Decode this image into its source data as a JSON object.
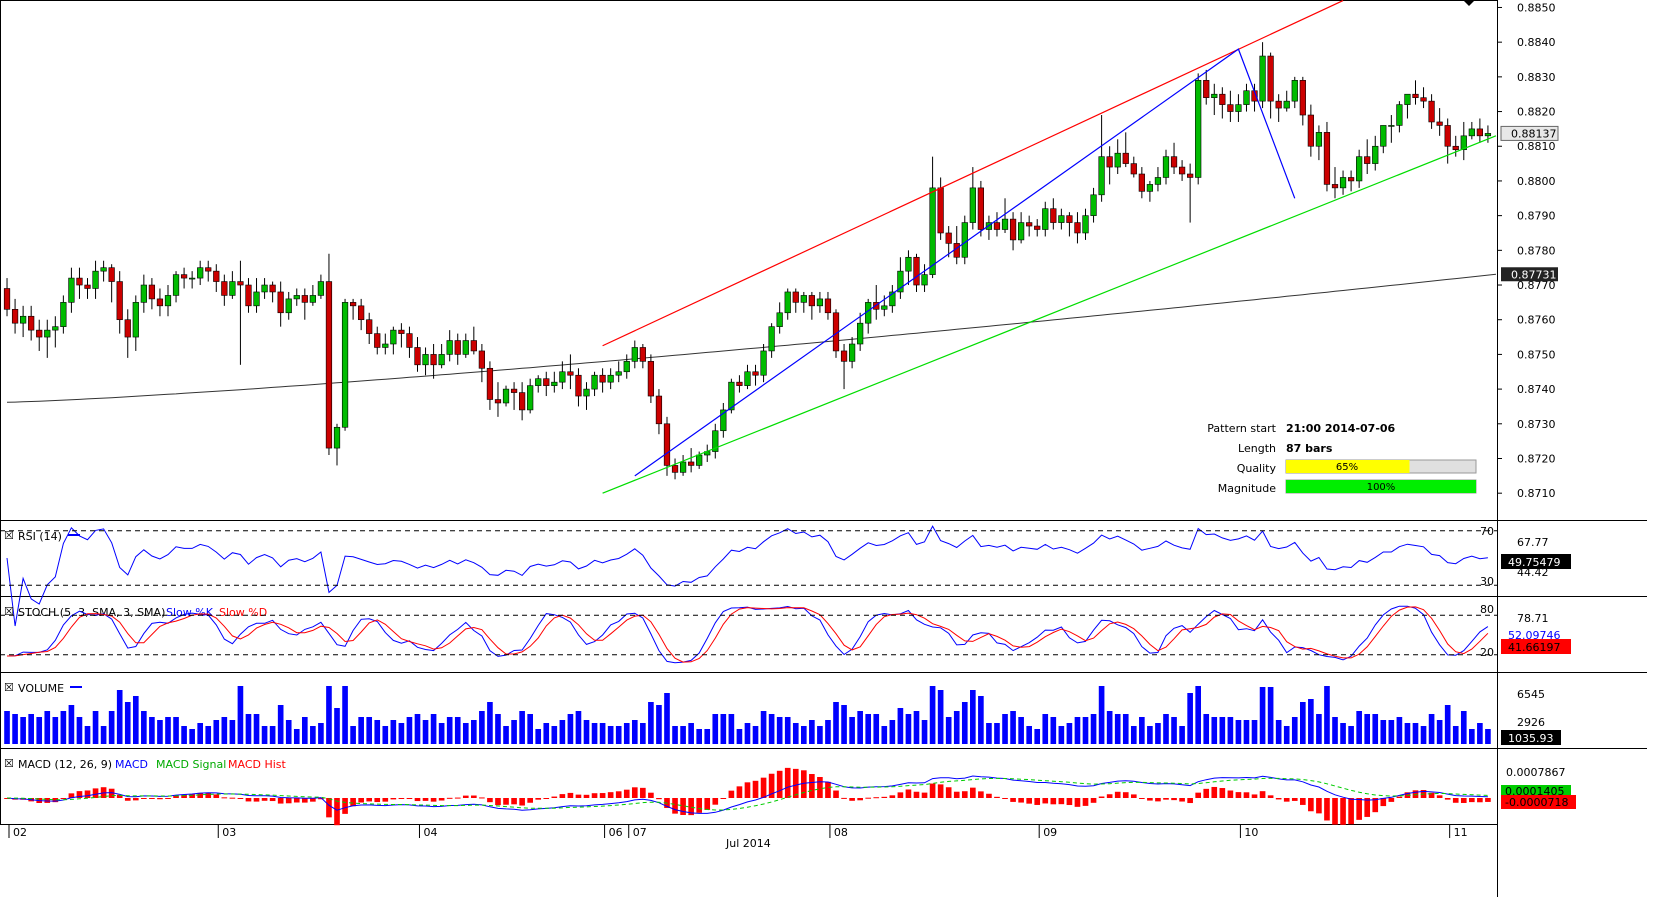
{
  "colors": {
    "bull": "#00bb00",
    "bear": "#cc0000",
    "trendline_upper": "#ff0000",
    "trendline_lower": "#00dd00",
    "zigzag": "#0000ff",
    "ma": "#333333",
    "rsi": "#0000ff",
    "stoch_k": "#0000ff",
    "stoch_d": "#ff0000",
    "volume": "#0000ff",
    "macd": "#0000ff",
    "macd_signal": "#00cc00",
    "macd_hist": "#ff0000",
    "quality_bar": "#ffff00",
    "magnitude_bar": "#00ee00"
  },
  "pattern_info": {
    "start_label": "Pattern start",
    "start_value": "21:00 2014-07-06",
    "length_label": "Length",
    "length_value": "87 bars",
    "quality_label": "Quality",
    "quality_value": "65%",
    "quality_fraction": 0.65,
    "magnitude_label": "Magnitude",
    "magnitude_value": "100%",
    "magnitude_fraction": 1.0
  },
  "panels": {
    "rsi": {
      "label": "RSI (14)",
      "levels": [
        "70",
        "30"
      ],
      "value_a": "67.77",
      "value_b": "49.75479",
      "value_c": "44.42"
    },
    "stoch": {
      "label": "STOCH (5, 3, SMA, 3, SMA)",
      "k_label": "Slow %K",
      "d_label": "Slow %D",
      "levels": [
        "80",
        "20"
      ],
      "value_a": "78.71",
      "value_b": "52.09746",
      "value_c": "41.66197"
    },
    "volume": {
      "label": "VOLUME",
      "ticks": [
        "6545",
        "2926"
      ],
      "last_value": "1035.93"
    },
    "macd": {
      "label": "MACD (12, 26, 9)",
      "macd_name": "MACD",
      "signal_name": "MACD Signal",
      "hist_name": "MACD Hist",
      "tick": "0.0007867",
      "value_a": "0.0001405",
      "value_b": "-0.0000718"
    }
  },
  "chart_data": {
    "type": "candlestick",
    "instrument_note": "",
    "y_ticks": [
      "0.8850",
      "0.8840",
      "0.8830",
      "0.8820",
      "0.8810",
      "0.8800",
      "0.8790",
      "0.8780",
      "0.8770",
      "0.8760",
      "0.8750",
      "0.8740",
      "0.8730",
      "0.8720",
      "0.8710"
    ],
    "ylim": [
      0.8704,
      0.8851
    ],
    "current_price": "0.88137",
    "ma_value": "0.87731",
    "x_ticks": [
      "02",
      "03",
      "04",
      "06",
      "07",
      "08",
      "09",
      "10",
      "11"
    ],
    "x_month_label": "Jul 2014",
    "x_tick_bars": [
      0,
      26,
      51,
      74,
      77,
      102,
      128,
      153,
      179
    ],
    "bars": 186,
    "candles": [
      [
        0.8769,
        0.8763,
        0.8772,
        0.8761
      ],
      [
        0.8763,
        0.8759,
        0.8766,
        0.8756
      ],
      [
        0.8759,
        0.8761,
        0.8764,
        0.8755
      ],
      [
        0.8761,
        0.8757,
        0.8764,
        0.8754
      ],
      [
        0.8757,
        0.8755,
        0.876,
        0.8751
      ],
      [
        0.8755,
        0.8757,
        0.876,
        0.8749
      ],
      [
        0.8757,
        0.8758,
        0.8761,
        0.8752
      ],
      [
        0.8758,
        0.8765,
        0.8767,
        0.8756
      ],
      [
        0.8765,
        0.8772,
        0.8775,
        0.8762
      ],
      [
        0.8772,
        0.877,
        0.8775,
        0.8766
      ],
      [
        0.877,
        0.8769,
        0.8772,
        0.8766
      ],
      [
        0.8769,
        0.8774,
        0.8777,
        0.8766
      ],
      [
        0.8774,
        0.8775,
        0.8777,
        0.8771
      ],
      [
        0.8775,
        0.8771,
        0.8776,
        0.8765
      ],
      [
        0.8771,
        0.876,
        0.8774,
        0.8756
      ],
      [
        0.876,
        0.8755,
        0.8763,
        0.8749
      ],
      [
        0.8755,
        0.8765,
        0.8767,
        0.8751
      ],
      [
        0.8765,
        0.877,
        0.8773,
        0.8762
      ],
      [
        0.877,
        0.8766,
        0.8772,
        0.8763
      ],
      [
        0.8766,
        0.8764,
        0.8769,
        0.8761
      ],
      [
        0.8764,
        0.8767,
        0.877,
        0.8761
      ],
      [
        0.8767,
        0.8773,
        0.8774,
        0.8765
      ],
      [
        0.8773,
        0.8772,
        0.8775,
        0.8769
      ],
      [
        0.8772,
        0.8772,
        0.8774,
        0.8769
      ],
      [
        0.8772,
        0.8775,
        0.8777,
        0.877
      ],
      [
        0.8775,
        0.8774,
        0.8777,
        0.8771
      ],
      [
        0.8774,
        0.8771,
        0.8776,
        0.8768
      ],
      [
        0.8771,
        0.8767,
        0.8773,
        0.8764
      ],
      [
        0.8767,
        0.8771,
        0.8774,
        0.8766
      ],
      [
        0.8771,
        0.877,
        0.8777,
        0.8747
      ],
      [
        0.877,
        0.8764,
        0.8772,
        0.8762
      ],
      [
        0.8764,
        0.8768,
        0.8772,
        0.8762
      ],
      [
        0.8768,
        0.877,
        0.8772,
        0.8766
      ],
      [
        0.877,
        0.8768,
        0.8771,
        0.8765
      ],
      [
        0.8768,
        0.8762,
        0.8771,
        0.8758
      ],
      [
        0.8762,
        0.8766,
        0.8768,
        0.876
      ],
      [
        0.8766,
        0.8767,
        0.8769,
        0.8764
      ],
      [
        0.8767,
        0.8765,
        0.8769,
        0.876
      ],
      [
        0.8765,
        0.8767,
        0.877,
        0.8764
      ],
      [
        0.8767,
        0.8771,
        0.8773,
        0.8766
      ],
      [
        0.8771,
        0.8723,
        0.8779,
        0.8721
      ],
      [
        0.8723,
        0.8729,
        0.873,
        0.8718
      ],
      [
        0.8729,
        0.8765,
        0.8766,
        0.8728
      ],
      [
        0.8765,
        0.8764,
        0.8766,
        0.876
      ],
      [
        0.8764,
        0.876,
        0.8766,
        0.8757
      ],
      [
        0.876,
        0.8756,
        0.8762,
        0.8753
      ],
      [
        0.8756,
        0.8752,
        0.8758,
        0.875
      ],
      [
        0.8752,
        0.8753,
        0.8756,
        0.875
      ],
      [
        0.8753,
        0.8757,
        0.8758,
        0.875
      ],
      [
        0.8757,
        0.8756,
        0.8759,
        0.8752
      ],
      [
        0.8756,
        0.8752,
        0.8758,
        0.8749
      ],
      [
        0.8752,
        0.8747,
        0.8755,
        0.8745
      ],
      [
        0.8747,
        0.875,
        0.8752,
        0.8744
      ],
      [
        0.875,
        0.8747,
        0.8753,
        0.8743
      ],
      [
        0.8747,
        0.875,
        0.8753,
        0.8746
      ],
      [
        0.875,
        0.8754,
        0.8757,
        0.8748
      ],
      [
        0.8754,
        0.875,
        0.8756,
        0.8747
      ],
      [
        0.875,
        0.8754,
        0.8756,
        0.8749
      ],
      [
        0.8754,
        0.8751,
        0.8758,
        0.875
      ],
      [
        0.8751,
        0.8746,
        0.8753,
        0.8742
      ],
      [
        0.8746,
        0.8737,
        0.8748,
        0.8734
      ],
      [
        0.8737,
        0.8736,
        0.8742,
        0.8732
      ],
      [
        0.8736,
        0.874,
        0.8741,
        0.8735
      ],
      [
        0.874,
        0.8739,
        0.8742,
        0.8734
      ],
      [
        0.8739,
        0.8734,
        0.8742,
        0.8731
      ],
      [
        0.8734,
        0.8741,
        0.8743,
        0.8733
      ],
      [
        0.8741,
        0.8743,
        0.8744,
        0.8739
      ],
      [
        0.8743,
        0.8741,
        0.8745,
        0.8738
      ],
      [
        0.8741,
        0.8742,
        0.8745,
        0.8739
      ],
      [
        0.8742,
        0.8745,
        0.8748,
        0.874
      ],
      [
        0.8745,
        0.8744,
        0.875,
        0.874
      ],
      [
        0.8744,
        0.8738,
        0.8746,
        0.8735
      ],
      [
        0.8738,
        0.874,
        0.8742,
        0.8734
      ],
      [
        0.874,
        0.8744,
        0.8745,
        0.8738
      ],
      [
        0.8744,
        0.8742,
        0.8746,
        0.8739
      ],
      [
        0.8742,
        0.8744,
        0.8746,
        0.874
      ],
      [
        0.8744,
        0.8745,
        0.8748,
        0.8742
      ],
      [
        0.8745,
        0.8748,
        0.875,
        0.8743
      ],
      [
        0.8748,
        0.8752,
        0.8754,
        0.8746
      ],
      [
        0.8752,
        0.8748,
        0.8753,
        0.8746
      ],
      [
        0.8748,
        0.8738,
        0.875,
        0.8736
      ],
      [
        0.8738,
        0.873,
        0.874,
        0.8727
      ],
      [
        0.873,
        0.8718,
        0.8732,
        0.8715
      ],
      [
        0.8718,
        0.8716,
        0.872,
        0.8714
      ],
      [
        0.8716,
        0.8719,
        0.8721,
        0.8715
      ],
      [
        0.8719,
        0.8718,
        0.8723,
        0.8716
      ],
      [
        0.8718,
        0.8721,
        0.8722,
        0.8717
      ],
      [
        0.8721,
        0.8722,
        0.8724,
        0.8719
      ],
      [
        0.8722,
        0.8728,
        0.873,
        0.872
      ],
      [
        0.8728,
        0.8734,
        0.8736,
        0.8726
      ],
      [
        0.8734,
        0.8742,
        0.8743,
        0.8733
      ],
      [
        0.8742,
        0.8741,
        0.8744,
        0.8739
      ],
      [
        0.8741,
        0.8745,
        0.8747,
        0.874
      ],
      [
        0.8745,
        0.8744,
        0.8747,
        0.8741
      ],
      [
        0.8744,
        0.8751,
        0.8753,
        0.8742
      ],
      [
        0.8751,
        0.8758,
        0.8759,
        0.8749
      ],
      [
        0.8758,
        0.8762,
        0.8765,
        0.8756
      ],
      [
        0.8762,
        0.8768,
        0.8769,
        0.876
      ],
      [
        0.8768,
        0.8765,
        0.8769,
        0.8762
      ],
      [
        0.8765,
        0.8767,
        0.8768,
        0.8762
      ],
      [
        0.8767,
        0.8764,
        0.8768,
        0.876
      ],
      [
        0.8764,
        0.8766,
        0.8768,
        0.8762
      ],
      [
        0.8766,
        0.8762,
        0.8768,
        0.876
      ],
      [
        0.8762,
        0.8751,
        0.8763,
        0.8749
      ],
      [
        0.8751,
        0.8748,
        0.8753,
        0.874
      ],
      [
        0.8748,
        0.8753,
        0.8755,
        0.8746
      ],
      [
        0.8753,
        0.8759,
        0.8762,
        0.8751
      ],
      [
        0.8759,
        0.8765,
        0.8766,
        0.8756
      ],
      [
        0.8765,
        0.8763,
        0.877,
        0.876
      ],
      [
        0.8763,
        0.8764,
        0.8767,
        0.8761
      ],
      [
        0.8764,
        0.8768,
        0.877,
        0.8762
      ],
      [
        0.8768,
        0.8774,
        0.8778,
        0.8766
      ],
      [
        0.8774,
        0.8778,
        0.878,
        0.877
      ],
      [
        0.8778,
        0.877,
        0.8779,
        0.8768
      ],
      [
        0.877,
        0.8773,
        0.8776,
        0.8768
      ],
      [
        0.8773,
        0.8798,
        0.8807,
        0.8772
      ],
      [
        0.8798,
        0.8785,
        0.8801,
        0.8783
      ],
      [
        0.8785,
        0.8782,
        0.8787,
        0.8778
      ],
      [
        0.8782,
        0.8778,
        0.8787,
        0.8776
      ],
      [
        0.8778,
        0.8788,
        0.879,
        0.8776
      ],
      [
        0.8788,
        0.8798,
        0.8804,
        0.8786
      ],
      [
        0.8798,
        0.8786,
        0.88,
        0.8784
      ],
      [
        0.8786,
        0.8788,
        0.879,
        0.8783
      ],
      [
        0.8788,
        0.8786,
        0.8791,
        0.8784
      ],
      [
        0.8786,
        0.8789,
        0.8795,
        0.8785
      ],
      [
        0.8789,
        0.8783,
        0.8791,
        0.878
      ],
      [
        0.8783,
        0.8788,
        0.8791,
        0.8782
      ],
      [
        0.8788,
        0.8787,
        0.879,
        0.8784
      ],
      [
        0.8787,
        0.8786,
        0.8789,
        0.8784
      ],
      [
        0.8786,
        0.8792,
        0.8794,
        0.8784
      ],
      [
        0.8792,
        0.8788,
        0.8795,
        0.8786
      ],
      [
        0.8788,
        0.879,
        0.8792,
        0.8786
      ],
      [
        0.879,
        0.8788,
        0.8791,
        0.8784
      ],
      [
        0.8788,
        0.8785,
        0.8791,
        0.8782
      ],
      [
        0.8785,
        0.879,
        0.8792,
        0.8783
      ],
      [
        0.879,
        0.8796,
        0.8798,
        0.8788
      ],
      [
        0.8796,
        0.8807,
        0.8819,
        0.8794
      ],
      [
        0.8807,
        0.8804,
        0.881,
        0.8799
      ],
      [
        0.8804,
        0.8808,
        0.8812,
        0.8802
      ],
      [
        0.8808,
        0.8805,
        0.8814,
        0.8804
      ],
      [
        0.8805,
        0.8802,
        0.8807,
        0.8801
      ],
      [
        0.8802,
        0.8797,
        0.8804,
        0.8795
      ],
      [
        0.8797,
        0.8799,
        0.88,
        0.8794
      ],
      [
        0.8799,
        0.8801,
        0.8804,
        0.8797
      ],
      [
        0.8801,
        0.8807,
        0.8809,
        0.8799
      ],
      [
        0.8807,
        0.8804,
        0.8811,
        0.8802
      ],
      [
        0.8804,
        0.8802,
        0.8806,
        0.88
      ],
      [
        0.8802,
        0.8801,
        0.8805,
        0.8788
      ],
      [
        0.8801,
        0.8829,
        0.8831,
        0.8799
      ],
      [
        0.8829,
        0.8824,
        0.8832,
        0.8822
      ],
      [
        0.8824,
        0.8825,
        0.8828,
        0.8819
      ],
      [
        0.8825,
        0.8822,
        0.8827,
        0.8818
      ],
      [
        0.8822,
        0.882,
        0.8826,
        0.8817
      ],
      [
        0.882,
        0.8822,
        0.8825,
        0.8817
      ],
      [
        0.8822,
        0.8826,
        0.8828,
        0.882
      ],
      [
        0.8826,
        0.8823,
        0.8828,
        0.882
      ],
      [
        0.8823,
        0.8836,
        0.884,
        0.8821
      ],
      [
        0.8836,
        0.8823,
        0.8837,
        0.8818
      ],
      [
        0.8823,
        0.8821,
        0.8825,
        0.8817
      ],
      [
        0.8821,
        0.8823,
        0.8826,
        0.882
      ],
      [
        0.8823,
        0.8829,
        0.883,
        0.8821
      ],
      [
        0.8829,
        0.8819,
        0.883,
        0.8816
      ],
      [
        0.8819,
        0.881,
        0.8822,
        0.8807
      ],
      [
        0.881,
        0.8814,
        0.8816,
        0.8806
      ],
      [
        0.8814,
        0.8799,
        0.8817,
        0.8797
      ],
      [
        0.8799,
        0.8798,
        0.8804,
        0.8795
      ],
      [
        0.8798,
        0.8801,
        0.8803,
        0.8796
      ],
      [
        0.8801,
        0.88,
        0.8803,
        0.8797
      ],
      [
        0.88,
        0.8807,
        0.8809,
        0.8798
      ],
      [
        0.8807,
        0.8805,
        0.8812,
        0.8802
      ],
      [
        0.8805,
        0.881,
        0.8813,
        0.8803
      ],
      [
        0.881,
        0.8816,
        0.8816,
        0.8808
      ],
      [
        0.8816,
        0.8816,
        0.8819,
        0.8811
      ],
      [
        0.8816,
        0.8822,
        0.8823,
        0.8814
      ],
      [
        0.8822,
        0.8825,
        0.8825,
        0.8818
      ],
      [
        0.8825,
        0.8824,
        0.8829,
        0.8822
      ],
      [
        0.8824,
        0.8823,
        0.8827,
        0.8821
      ],
      [
        0.8823,
        0.8817,
        0.8825,
        0.8815
      ],
      [
        0.8817,
        0.8816,
        0.8821,
        0.8813
      ],
      [
        0.8816,
        0.881,
        0.8818,
        0.8805
      ],
      [
        0.881,
        0.8809,
        0.8813,
        0.8807
      ],
      [
        0.8809,
        0.8813,
        0.8817,
        0.8806
      ],
      [
        0.8813,
        0.8815,
        0.8817,
        0.8812
      ],
      [
        0.8815,
        0.8813,
        0.8818,
        0.8811
      ],
      [
        0.8813,
        0.88137,
        0.8816,
        0.8811
      ]
    ]
  }
}
